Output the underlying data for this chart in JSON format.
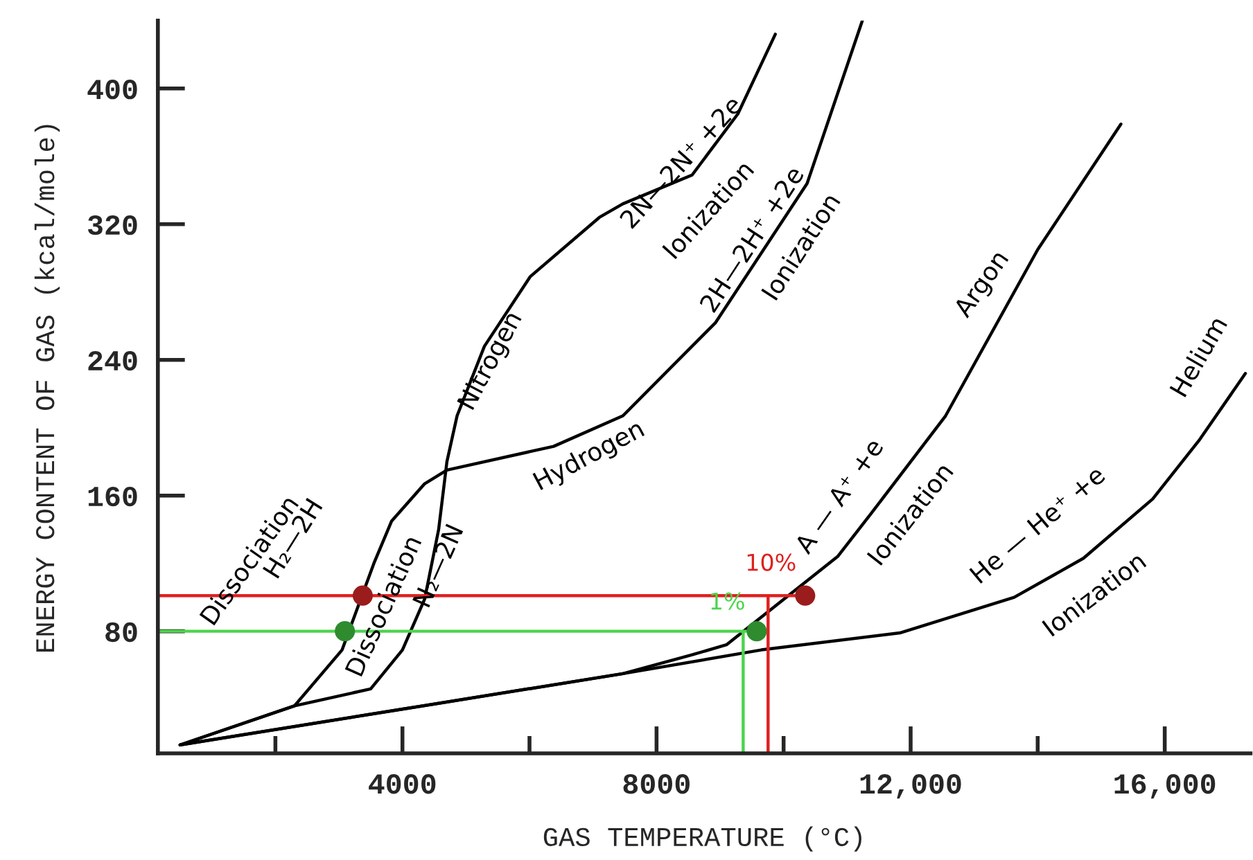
{
  "chart_data": {
    "type": "line",
    "xlabel": "GAS TEMPERATURE (°C)",
    "ylabel": "ENERGY CONTENT OF GAS (kcal/mole)",
    "xlim": [
      150,
      17350
    ],
    "ylim": [
      8,
      440
    ],
    "xticks": [
      {
        "value": 2000,
        "label": null
      },
      4000,
      {
        "value": 6000,
        "label": null
      },
      8000,
      {
        "value": 10000,
        "label": null
      },
      {
        "value": 12000,
        "label": "12,000"
      },
      {
        "value": 14000,
        "label": null
      },
      {
        "value": 16000,
        "label": "16,000"
      }
    ],
    "yticks": [
      80,
      160,
      240,
      320,
      400
    ],
    "grid": false,
    "marker": "none",
    "line_style": "solid",
    "series": [
      {
        "color": "#000000",
        "x": [
          500,
          2300,
          3500,
          4000,
          4350,
          4570,
          4700,
          4860,
          5290,
          6010,
          7100,
          7470,
          8560,
          9280,
          9870
        ],
        "values": [
          13,
          36,
          46,
          69,
          99,
          140,
          180,
          207,
          248,
          289,
          324,
          332,
          349,
          385,
          432
        ]
      },
      {
        "color": "#000000",
        "x": [
          500,
          2300,
          3050,
          3550,
          3830,
          4350,
          4700,
          6380,
          7470,
          8930,
          10370,
          11240
        ],
        "values": [
          13,
          36,
          69,
          120,
          145,
          167,
          175,
          189,
          207,
          262,
          344,
          440
        ]
      },
      {
        "color": "#000000",
        "x": [
          500,
          3990,
          7470,
          8550,
          9100,
          10850,
          11390,
          12550,
          14000,
          15310
        ],
        "values": [
          13,
          34,
          55,
          66,
          72,
          124,
          150,
          207,
          305,
          379
        ]
      },
      {
        "color": "#000000",
        "x": [
          500,
          3990,
          7470,
          9650,
          11830,
          13630,
          14720,
          15810,
          16550,
          17270
        ],
        "values": [
          13,
          34,
          55,
          69,
          79,
          100,
          123,
          158,
          193,
          232
        ]
      },
      {
        "color": "#e02020",
        "x": [
          150,
          10340
        ],
        "values": [
          101,
          101
        ]
      },
      {
        "color": "#e02020",
        "x": [
          9756,
          9756
        ],
        "values": [
          8,
          101
        ]
      },
      {
        "color": "#4cd44c",
        "x": [
          150,
          9577
        ],
        "values": [
          80,
          80
        ]
      },
      {
        "color": "#4cd44c",
        "x": [
          9364,
          9364
        ],
        "values": [
          8,
          80
        ]
      },
      {
        "type": "scatter",
        "marker": "circle",
        "color": "#9b1c1c",
        "x": [
          3375,
          10340
        ],
        "values": [
          101,
          101
        ]
      },
      {
        "type": "scatter",
        "marker": "circle",
        "color": "#2e8b2e",
        "x": [
          3094,
          9577
        ],
        "values": [
          80,
          80
        ]
      }
    ],
    "annotations": [
      "Nitrogen",
      "2N—2N⁺ +2e",
      "Ionization",
      "Hydrogen",
      "2H—2H⁺ +2e",
      "Ionization",
      "Dissociation",
      "H₂—2H",
      "Dissociation",
      "N₂—2N",
      "Argon",
      "A — A⁺ +e",
      "Ionization",
      "Helium",
      "He — He⁺ +e",
      "Ionization",
      "10%",
      "1%"
    ]
  }
}
